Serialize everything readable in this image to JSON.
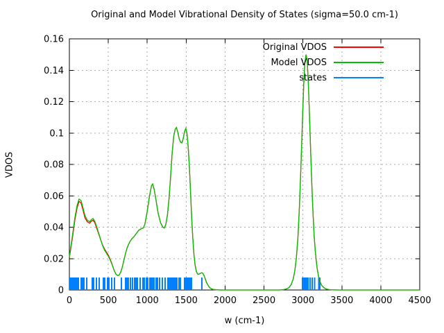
{
  "chart": {
    "title": "Original and Model Vibrational Density of States (sigma=50.0 cm-1)",
    "xlabel": "w (cm-1)",
    "ylabel": "VDOS"
  },
  "chart_data": {
    "type": "line",
    "title": "Original and Model Vibrational Density of States (sigma=50.0 cm-1)",
    "xlabel": "w (cm-1)",
    "ylabel": "VDOS",
    "xlim": [
      0,
      4500
    ],
    "ylim": [
      0,
      0.16
    ],
    "xticks": [
      "0",
      "500",
      "1000",
      "1500",
      "2000",
      "2500",
      "3000",
      "3500",
      "4000",
      "4500"
    ],
    "xtick_values": [
      0,
      500,
      1000,
      1500,
      2000,
      2500,
      3000,
      3500,
      4000,
      4500
    ],
    "yticks": [
      "0",
      "0.02",
      "0.04",
      "0.06",
      "0.08",
      "0.1",
      "0.12",
      "0.14",
      "0.16"
    ],
    "ytick_values": [
      0,
      0.02,
      0.04,
      0.06,
      0.08,
      0.1,
      0.12,
      0.14,
      0.16
    ],
    "grid": true,
    "legend_position": "top-right-inside",
    "background": "#ffffff",
    "series": [
      {
        "name": "Original VDOS",
        "color": "#ff0000",
        "points": [
          [
            0,
            0.0205
          ],
          [
            40,
            0.0335
          ],
          [
            70,
            0.0445
          ],
          [
            100,
            0.0525
          ],
          [
            125,
            0.0565
          ],
          [
            150,
            0.0555
          ],
          [
            175,
            0.051
          ],
          [
            200,
            0.046
          ],
          [
            230,
            0.0435
          ],
          [
            260,
            0.0425
          ],
          [
            285,
            0.044
          ],
          [
            305,
            0.0445
          ],
          [
            325,
            0.043
          ],
          [
            350,
            0.0395
          ],
          [
            375,
            0.036
          ],
          [
            400,
            0.0322
          ],
          [
            425,
            0.0288
          ],
          [
            450,
            0.0262
          ],
          [
            475,
            0.0242
          ],
          [
            500,
            0.0222
          ],
          [
            525,
            0.0196
          ],
          [
            550,
            0.0163
          ],
          [
            575,
            0.0125
          ],
          [
            600,
            0.01
          ],
          [
            620,
            0.0092
          ],
          [
            640,
            0.0095
          ],
          [
            660,
            0.0115
          ],
          [
            680,
            0.0145
          ],
          [
            700,
            0.019
          ],
          [
            720,
            0.023
          ],
          [
            740,
            0.0265
          ],
          [
            760,
            0.029
          ],
          [
            780,
            0.031
          ],
          [
            800,
            0.0325
          ],
          [
            830,
            0.034
          ],
          [
            860,
            0.036
          ],
          [
            890,
            0.038
          ],
          [
            920,
            0.039
          ],
          [
            950,
            0.0395
          ],
          [
            970,
            0.042
          ],
          [
            1000,
            0.05
          ],
          [
            1030,
            0.06
          ],
          [
            1055,
            0.0665
          ],
          [
            1070,
            0.0675
          ],
          [
            1090,
            0.064
          ],
          [
            1110,
            0.058
          ],
          [
            1140,
            0.049
          ],
          [
            1170,
            0.043
          ],
          [
            1200,
            0.04
          ],
          [
            1220,
            0.0395
          ],
          [
            1240,
            0.042
          ],
          [
            1260,
            0.048
          ],
          [
            1280,
            0.058
          ],
          [
            1300,
            0.072
          ],
          [
            1320,
            0.087
          ],
          [
            1340,
            0.098
          ],
          [
            1360,
            0.1025
          ],
          [
            1375,
            0.1035
          ],
          [
            1390,
            0.101
          ],
          [
            1410,
            0.0965
          ],
          [
            1430,
            0.094
          ],
          [
            1445,
            0.0938
          ],
          [
            1460,
            0.096
          ],
          [
            1480,
            0.101
          ],
          [
            1495,
            0.103
          ],
          [
            1510,
            0.1
          ],
          [
            1525,
            0.092
          ],
          [
            1540,
            0.08
          ],
          [
            1555,
            0.064
          ],
          [
            1570,
            0.047
          ],
          [
            1585,
            0.033
          ],
          [
            1600,
            0.0225
          ],
          [
            1615,
            0.016
          ],
          [
            1630,
            0.012
          ],
          [
            1645,
            0.0102
          ],
          [
            1660,
            0.01
          ],
          [
            1680,
            0.0105
          ],
          [
            1700,
            0.011
          ],
          [
            1715,
            0.0105
          ],
          [
            1730,
            0.0092
          ],
          [
            1745,
            0.0072
          ],
          [
            1760,
            0.005
          ],
          [
            1780,
            0.003
          ],
          [
            1800,
            0.0016
          ],
          [
            1825,
            0.0007
          ],
          [
            1850,
            0.0003
          ],
          [
            1900,
            0.0001
          ],
          [
            1950,
            0
          ],
          [
            2100,
            0
          ],
          [
            2700,
            0
          ],
          [
            2750,
            0.0002
          ],
          [
            2790,
            0.0007
          ],
          [
            2820,
            0.0015
          ],
          [
            2850,
            0.0035
          ],
          [
            2875,
            0.007
          ],
          [
            2895,
            0.012
          ],
          [
            2915,
            0.02
          ],
          [
            2935,
            0.033
          ],
          [
            2955,
            0.053
          ],
          [
            2975,
            0.08
          ],
          [
            2995,
            0.11
          ],
          [
            3010,
            0.131
          ],
          [
            3025,
            0.145
          ],
          [
            3040,
            0.15
          ],
          [
            3055,
            0.146
          ],
          [
            3070,
            0.131
          ],
          [
            3085,
            0.11
          ],
          [
            3100,
            0.087
          ],
          [
            3115,
            0.066
          ],
          [
            3130,
            0.048
          ],
          [
            3145,
            0.034
          ],
          [
            3160,
            0.024
          ],
          [
            3180,
            0.0145
          ],
          [
            3200,
            0.0088
          ],
          [
            3220,
            0.0052
          ],
          [
            3240,
            0.003
          ],
          [
            3270,
            0.0014
          ],
          [
            3300,
            0.0006
          ],
          [
            3340,
            0.0002
          ],
          [
            3380,
            0.0001
          ],
          [
            3450,
            0
          ],
          [
            4500,
            0
          ]
        ]
      },
      {
        "name": "Model VDOS",
        "color": "#00c000",
        "points": [
          [
            0,
            0.021
          ],
          [
            40,
            0.035
          ],
          [
            70,
            0.046
          ],
          [
            100,
            0.054
          ],
          [
            125,
            0.058
          ],
          [
            150,
            0.057
          ],
          [
            175,
            0.0525
          ],
          [
            200,
            0.0475
          ],
          [
            230,
            0.0445
          ],
          [
            260,
            0.0435
          ],
          [
            285,
            0.045
          ],
          [
            305,
            0.0455
          ],
          [
            325,
            0.044
          ],
          [
            350,
            0.0405
          ],
          [
            375,
            0.0365
          ],
          [
            400,
            0.0325
          ],
          [
            425,
            0.0285
          ],
          [
            450,
            0.0255
          ],
          [
            475,
            0.0235
          ],
          [
            500,
            0.0215
          ],
          [
            525,
            0.019
          ],
          [
            550,
            0.016
          ],
          [
            575,
            0.0125
          ],
          [
            600,
            0.01
          ],
          [
            620,
            0.0092
          ],
          [
            640,
            0.0095
          ],
          [
            660,
            0.0115
          ],
          [
            680,
            0.0145
          ],
          [
            700,
            0.019
          ],
          [
            720,
            0.023
          ],
          [
            740,
            0.0265
          ],
          [
            760,
            0.029
          ],
          [
            780,
            0.031
          ],
          [
            800,
            0.0325
          ],
          [
            830,
            0.034
          ],
          [
            860,
            0.036
          ],
          [
            890,
            0.038
          ],
          [
            920,
            0.039
          ],
          [
            950,
            0.0395
          ],
          [
            970,
            0.042
          ],
          [
            1000,
            0.05
          ],
          [
            1030,
            0.06
          ],
          [
            1055,
            0.0665
          ],
          [
            1070,
            0.0675
          ],
          [
            1090,
            0.064
          ],
          [
            1110,
            0.058
          ],
          [
            1140,
            0.049
          ],
          [
            1170,
            0.043
          ],
          [
            1200,
            0.04
          ],
          [
            1220,
            0.0395
          ],
          [
            1240,
            0.042
          ],
          [
            1260,
            0.048
          ],
          [
            1280,
            0.058
          ],
          [
            1300,
            0.072
          ],
          [
            1320,
            0.087
          ],
          [
            1340,
            0.098
          ],
          [
            1360,
            0.1025
          ],
          [
            1375,
            0.1035
          ],
          [
            1390,
            0.101
          ],
          [
            1410,
            0.0965
          ],
          [
            1430,
            0.094
          ],
          [
            1445,
            0.0938
          ],
          [
            1460,
            0.096
          ],
          [
            1480,
            0.101
          ],
          [
            1495,
            0.103
          ],
          [
            1510,
            0.1
          ],
          [
            1525,
            0.092
          ],
          [
            1540,
            0.08
          ],
          [
            1555,
            0.064
          ],
          [
            1570,
            0.047
          ],
          [
            1585,
            0.033
          ],
          [
            1600,
            0.0225
          ],
          [
            1615,
            0.016
          ],
          [
            1630,
            0.012
          ],
          [
            1645,
            0.0102
          ],
          [
            1660,
            0.01
          ],
          [
            1680,
            0.0105
          ],
          [
            1700,
            0.011
          ],
          [
            1715,
            0.0105
          ],
          [
            1730,
            0.0092
          ],
          [
            1745,
            0.0072
          ],
          [
            1760,
            0.005
          ],
          [
            1780,
            0.003
          ],
          [
            1800,
            0.0016
          ],
          [
            1825,
            0.0007
          ],
          [
            1850,
            0.0003
          ],
          [
            1900,
            0.0001
          ],
          [
            1950,
            0
          ],
          [
            2100,
            0
          ],
          [
            2700,
            0
          ],
          [
            2750,
            0.0002
          ],
          [
            2790,
            0.0007
          ],
          [
            2820,
            0.0015
          ],
          [
            2850,
            0.0035
          ],
          [
            2875,
            0.007
          ],
          [
            2895,
            0.012
          ],
          [
            2915,
            0.02
          ],
          [
            2935,
            0.033
          ],
          [
            2955,
            0.053
          ],
          [
            2975,
            0.08
          ],
          [
            2995,
            0.11
          ],
          [
            3010,
            0.131
          ],
          [
            3025,
            0.145
          ],
          [
            3040,
            0.15
          ],
          [
            3055,
            0.146
          ],
          [
            3070,
            0.131
          ],
          [
            3085,
            0.11
          ],
          [
            3100,
            0.087
          ],
          [
            3115,
            0.066
          ],
          [
            3130,
            0.048
          ],
          [
            3145,
            0.034
          ],
          [
            3160,
            0.024
          ],
          [
            3180,
            0.0145
          ],
          [
            3200,
            0.0088
          ],
          [
            3220,
            0.0052
          ],
          [
            3240,
            0.003
          ],
          [
            3270,
            0.0014
          ],
          [
            3300,
            0.0006
          ],
          [
            3340,
            0.0002
          ],
          [
            3380,
            0.0001
          ],
          [
            3450,
            0
          ],
          [
            4500,
            0
          ]
        ]
      }
    ],
    "states": {
      "name": "states",
      "color": "#0080ff",
      "impulse_height": 0.008,
      "frequencies": [
        10,
        20,
        30,
        45,
        62,
        80,
        98,
        116,
        151,
        169,
        187,
        223,
        294,
        312,
        347,
        383,
        437,
        454,
        490,
        508,
        543,
        579,
        668,
        721,
        739,
        757,
        784,
        811,
        838,
        856,
        873,
        909,
        945,
        962,
        989,
        1007,
        1034,
        1051,
        1069,
        1087,
        1114,
        1132,
        1158,
        1194,
        1229,
        1265,
        1274,
        1283,
        1292,
        1301,
        1319,
        1336,
        1345,
        1354,
        1363,
        1372,
        1381,
        1408,
        1426,
        1479,
        1497,
        1506,
        1515,
        1524,
        1533,
        1551,
        1568,
        1700,
        2995,
        3005,
        3015,
        3025,
        3035,
        3045,
        3055,
        3065,
        3090,
        3119,
        3152,
        3202,
        3217
      ]
    }
  }
}
